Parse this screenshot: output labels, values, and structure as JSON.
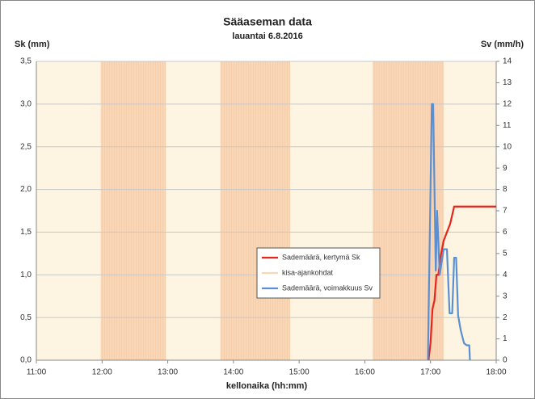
{
  "chart_data": {
    "type": "line",
    "title": "Sääaseman data",
    "subtitle": "lauantai 6.8.2016",
    "y_label": "Sk (mm)",
    "y2_label": "Sv (mm/h)",
    "x_label": "kellonaika (hh:mm)",
    "xlim": [
      11,
      18
    ],
    "xticks": [
      {
        "value": 11,
        "label": "11:00"
      },
      {
        "value": 12,
        "label": "12:00"
      },
      {
        "value": 13,
        "label": "13:00"
      },
      {
        "value": 14,
        "label": "14:00"
      },
      {
        "value": 15,
        "label": "15:00"
      },
      {
        "value": 16,
        "label": "16:00"
      },
      {
        "value": 17,
        "label": "17:00"
      },
      {
        "value": 18,
        "label": "18:00"
      }
    ],
    "ylim": [
      0,
      3.5
    ],
    "yticks": [
      {
        "value": 0,
        "label": "0,0"
      },
      {
        "value": 0.5,
        "label": "0,5"
      },
      {
        "value": 1,
        "label": "1,0"
      },
      {
        "value": 1.5,
        "label": "1,5"
      },
      {
        "value": 2,
        "label": "2,0"
      },
      {
        "value": 2.5,
        "label": "2,5"
      },
      {
        "value": 3,
        "label": "3,0"
      },
      {
        "value": 3.5,
        "label": "3,5"
      }
    ],
    "y2lim": [
      0,
      14
    ],
    "y2ticks": [
      0,
      1,
      2,
      3,
      4,
      5,
      6,
      7,
      8,
      9,
      10,
      11,
      12,
      13,
      14
    ],
    "grid": true,
    "background_color": "#fdf5e2",
    "series": [
      {
        "name": "Sademäärä, kertymä Sk",
        "color": "#e8251b",
        "x": [
          16.97,
          17.0,
          17.03,
          17.06,
          17.09,
          17.12,
          17.15,
          17.2,
          17.25,
          17.3,
          17.33,
          17.36,
          18.0
        ],
        "values": [
          0,
          0.2,
          0.6,
          0.7,
          1.0,
          1.0,
          1.2,
          1.4,
          1.5,
          1.6,
          1.7,
          1.8,
          1.8
        ]
      },
      {
        "name": "kisa-ajankohdat",
        "color": "#f9d6b6",
        "spans": [
          [
            11.98,
            12.97
          ],
          [
            13.8,
            14.86
          ],
          [
            16.12,
            17.2
          ]
        ]
      },
      {
        "name": "Sademäärä, voimakkuus Sv",
        "color": "#5b8fd0",
        "axis": "y2",
        "x": [
          16.96,
          17.02,
          17.04,
          17.08,
          17.1,
          17.14,
          17.2,
          17.25,
          17.29,
          17.33,
          17.36,
          17.39,
          17.42,
          17.46,
          17.51,
          17.55,
          17.59,
          17.6
        ],
        "values": [
          0,
          12,
          12,
          4.2,
          7,
          4,
          5.2,
          5.2,
          2.2,
          2.2,
          4.8,
          4.8,
          2.1,
          1.4,
          0.8,
          0.7,
          0.7,
          0
        ]
      }
    ]
  }
}
